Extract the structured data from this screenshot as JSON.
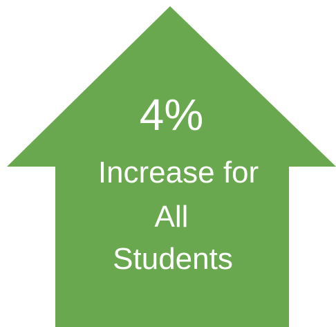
{
  "graphic": {
    "fill_color": "#6aa84f",
    "text_color": "#ffffff",
    "shape": "up-arrow",
    "headline": "4%",
    "caption_lines": [
      "Increase for",
      "All",
      "Students"
    ]
  }
}
